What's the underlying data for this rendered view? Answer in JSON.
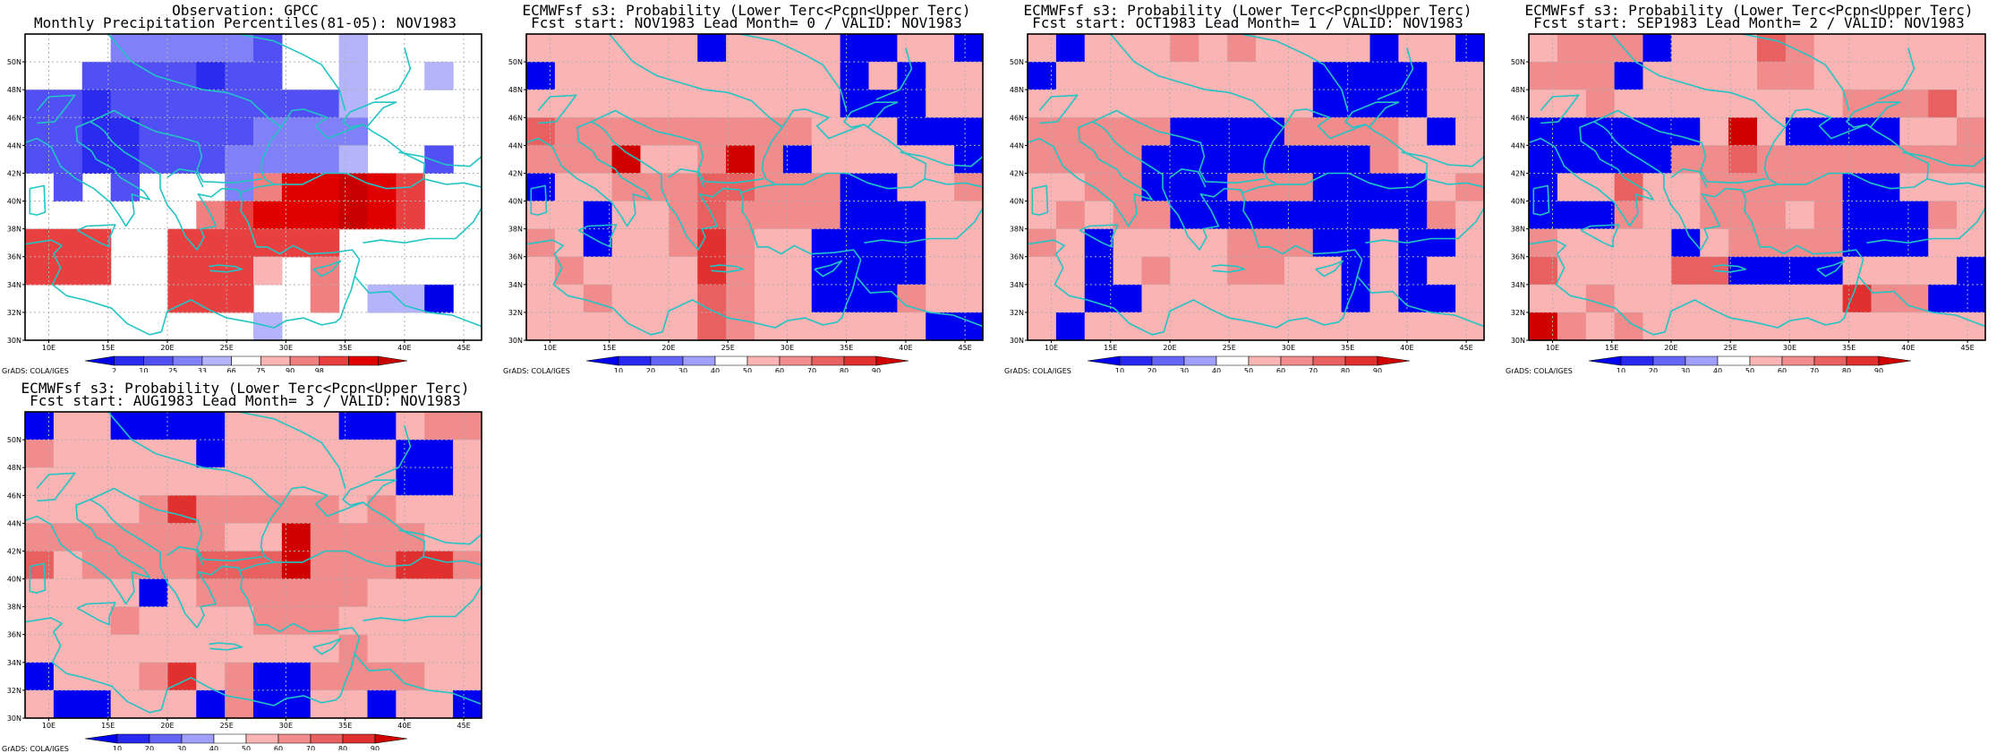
{
  "panels": [
    {
      "id": "obs",
      "title_line1": "Observation: GPCC",
      "title_line2": "Monthly Precipitation Percentiles(81-05): NOV1983",
      "credit": "GrADS: COLA/IGES",
      "colorbar": {
        "labels": [
          "2",
          "10",
          "25",
          "33",
          "66",
          "75",
          "90",
          "98"
        ],
        "colors": [
          "#0000e6",
          "#2b2bf0",
          "#5050f5",
          "#8080f8",
          "#b4b4fa",
          "#ffffff",
          "#fab4b4",
          "#f08080",
          "#e84040",
          "#e00000",
          "#c80000"
        ]
      }
    },
    {
      "id": "lead0",
      "title_line1": "ECMWFsf s3: Probability (Lower Terc<Pcpn<Upper Terc)",
      "title_line2": "Fcst start: NOV1983  Lead Month= 0 / VALID: NOV1983",
      "credit": "GrADS: COLA/IGES",
      "colorbar": {
        "labels": [
          "10",
          "20",
          "30",
          "40",
          "50",
          "60",
          "70",
          "80",
          "90"
        ],
        "colors": [
          "#0000f0",
          "#2828f0",
          "#6464f5",
          "#a0a0fa",
          "#ffffff",
          "#fab4b4",
          "#f08c8c",
          "#e86060",
          "#e03030",
          "#d00000"
        ]
      }
    },
    {
      "id": "lead1",
      "title_line1": "ECMWFsf s3: Probability (Lower Terc<Pcpn<Upper Terc)",
      "title_line2": "Fcst start: OCT1983  Lead Month= 1 / VALID: NOV1983",
      "credit": "GrADS: COLA/IGES",
      "colorbar": {
        "labels": [
          "10",
          "20",
          "30",
          "40",
          "50",
          "60",
          "70",
          "80",
          "90"
        ],
        "colors": [
          "#0000f0",
          "#2828f0",
          "#6464f5",
          "#a0a0fa",
          "#ffffff",
          "#fab4b4",
          "#f08c8c",
          "#e86060",
          "#e03030",
          "#d00000"
        ]
      }
    },
    {
      "id": "lead2",
      "title_line1": "ECMWFsf s3: Probability (Lower Terc<Pcpn<Upper Terc)",
      "title_line2": "Fcst start: SEP1983  Lead Month= 2 / VALID: NOV1983",
      "credit": "GrADS: COLA/IGES",
      "colorbar": {
        "labels": [
          "10",
          "20",
          "30",
          "40",
          "50",
          "60",
          "70",
          "80",
          "90"
        ],
        "colors": [
          "#0000f0",
          "#2828f0",
          "#6464f5",
          "#a0a0fa",
          "#ffffff",
          "#fab4b4",
          "#f08c8c",
          "#e86060",
          "#e03030",
          "#d00000"
        ]
      }
    },
    {
      "id": "lead3",
      "title_line1": "ECMWFsf s3: Probability (Lower Terc<Pcpn<Upper Terc)",
      "title_line2": "Fcst start: AUG1983  Lead Month= 3 / VALID: NOV1983",
      "credit": "GrADS: COLA/IGES",
      "colorbar": {
        "labels": [
          "10",
          "20",
          "30",
          "40",
          "50",
          "60",
          "70",
          "80",
          "90"
        ],
        "colors": [
          "#0000f0",
          "#2828f0",
          "#6464f5",
          "#a0a0fa",
          "#ffffff",
          "#fab4b4",
          "#f08c8c",
          "#e86060",
          "#e03030",
          "#d00000"
        ]
      }
    }
  ],
  "map_axes": {
    "lon_labels": [
      "10E",
      "15E",
      "20E",
      "25E",
      "30E",
      "35E",
      "40E",
      "45E"
    ],
    "lat_labels": [
      "30N",
      "32N",
      "34N",
      "36N",
      "38N",
      "40N",
      "42N",
      "44N",
      "46N",
      "48N",
      "50N"
    ],
    "lon_range": [
      8,
      46.5
    ],
    "lat_range": [
      30,
      52
    ],
    "grid": true
  },
  "chart_data": [
    {
      "type": "heatmap",
      "panel": "obs",
      "title": "Monthly Precipitation Percentiles(81-05): NOV1983",
      "x": [
        "8E",
        "10.5E",
        "13E",
        "15.5E",
        "18E",
        "20.5E",
        "23E",
        "25.5E",
        "28E",
        "30.5E",
        "33E",
        "35.5E",
        "38E",
        "40.5E",
        "43E",
        "45.5E"
      ],
      "y": [
        "51N",
        "49N",
        "47N",
        "45N",
        "43N",
        "41N",
        "39N",
        "37N",
        "35N",
        "33N",
        "31N"
      ],
      "grid_classes": [
        [
          5,
          5,
          5,
          3,
          3,
          3,
          3,
          3,
          2,
          5,
          5,
          4,
          5,
          5,
          5,
          5
        ],
        [
          5,
          5,
          2,
          2,
          2,
          2,
          1,
          2,
          2,
          5,
          5,
          4,
          5,
          5,
          4,
          5
        ],
        [
          2,
          2,
          1,
          2,
          2,
          2,
          2,
          2,
          2,
          2,
          2,
          4,
          5,
          5,
          5,
          5
        ],
        [
          2,
          2,
          1,
          1,
          2,
          2,
          2,
          2,
          3,
          3,
          3,
          3,
          5,
          5,
          5,
          5
        ],
        [
          2,
          2,
          1,
          1,
          2,
          2,
          2,
          3,
          3,
          3,
          3,
          4,
          5,
          5,
          2,
          5
        ],
        [
          5,
          2,
          5,
          2,
          5,
          5,
          5,
          3,
          7,
          9,
          9,
          10,
          9,
          8,
          5,
          5
        ],
        [
          5,
          5,
          5,
          5,
          5,
          5,
          7,
          8,
          9,
          9,
          9,
          10,
          9,
          8,
          5,
          5
        ],
        [
          8,
          8,
          8,
          5,
          5,
          8,
          8,
          8,
          8,
          8,
          8,
          5,
          5,
          5,
          5,
          5
        ],
        [
          8,
          8,
          8,
          5,
          5,
          8,
          8,
          8,
          6,
          5,
          7,
          5,
          5,
          5,
          5,
          5
        ],
        [
          5,
          5,
          5,
          5,
          5,
          8,
          8,
          8,
          5,
          5,
          7,
          5,
          4,
          4,
          0,
          5
        ],
        [
          5,
          5,
          5,
          5,
          5,
          5,
          5,
          5,
          4,
          5,
          5,
          5,
          5,
          5,
          5,
          5
        ]
      ]
    },
    {
      "type": "heatmap",
      "panel": "lead0",
      "title": "Probability (Lower Terc<Pcpn<Upper Terc) Lead Month= 0",
      "grid_classes": [
        [
          5,
          5,
          5,
          5,
          5,
          5,
          0,
          5,
          5,
          5,
          5,
          0,
          0,
          5,
          5,
          0
        ],
        [
          0,
          5,
          5,
          5,
          5,
          5,
          5,
          5,
          5,
          5,
          5,
          0,
          5,
          0,
          5,
          5
        ],
        [
          5,
          5,
          5,
          5,
          5,
          5,
          5,
          5,
          5,
          5,
          5,
          0,
          0,
          0,
          5,
          5
        ],
        [
          7,
          6,
          6,
          6,
          6,
          6,
          6,
          6,
          6,
          6,
          5,
          5,
          5,
          0,
          0,
          0
        ],
        [
          6,
          6,
          6,
          9,
          5,
          5,
          6,
          9,
          6,
          0,
          5,
          5,
          5,
          5,
          5,
          0
        ],
        [
          0,
          5,
          5,
          6,
          6,
          6,
          7,
          7,
          6,
          6,
          6,
          0,
          0,
          5,
          5,
          6
        ],
        [
          5,
          5,
          0,
          5,
          5,
          6,
          7,
          6,
          6,
          6,
          6,
          0,
          0,
          0,
          5,
          5
        ],
        [
          6,
          5,
          0,
          5,
          5,
          6,
          8,
          6,
          5,
          5,
          0,
          0,
          0,
          0,
          5,
          5
        ],
        [
          5,
          6,
          5,
          5,
          5,
          5,
          8,
          6,
          5,
          5,
          0,
          0,
          0,
          0,
          5,
          5
        ],
        [
          5,
          5,
          6,
          5,
          5,
          5,
          7,
          6,
          5,
          5,
          0,
          0,
          0,
          6,
          5,
          5
        ],
        [
          5,
          5,
          5,
          5,
          5,
          5,
          7,
          6,
          5,
          5,
          5,
          5,
          5,
          5,
          0,
          0
        ]
      ]
    },
    {
      "type": "heatmap",
      "panel": "lead1",
      "title": "Probability (Lower Terc<Pcpn<Upper Terc) Lead Month= 1",
      "grid_classes": [
        [
          5,
          0,
          5,
          5,
          5,
          6,
          5,
          6,
          5,
          5,
          5,
          5,
          0,
          5,
          5,
          0
        ],
        [
          0,
          5,
          5,
          5,
          5,
          5,
          5,
          5,
          5,
          5,
          0,
          0,
          0,
          0,
          5,
          5
        ],
        [
          5,
          5,
          5,
          5,
          5,
          5,
          5,
          5,
          5,
          5,
          0,
          0,
          0,
          0,
          5,
          5
        ],
        [
          6,
          6,
          6,
          6,
          6,
          0,
          0,
          0,
          0,
          6,
          6,
          6,
          6,
          5,
          0,
          5
        ],
        [
          6,
          6,
          6,
          6,
          0,
          0,
          0,
          0,
          0,
          0,
          0,
          0,
          6,
          5,
          5,
          5
        ],
        [
          5,
          5,
          6,
          6,
          0,
          0,
          0,
          6,
          6,
          6,
          0,
          0,
          0,
          0,
          5,
          6
        ],
        [
          5,
          6,
          5,
          6,
          6,
          0,
          0,
          0,
          0,
          0,
          0,
          0,
          0,
          0,
          6,
          5
        ],
        [
          6,
          5,
          0,
          5,
          5,
          5,
          5,
          6,
          6,
          6,
          0,
          0,
          5,
          0,
          0,
          5
        ],
        [
          5,
          5,
          0,
          5,
          6,
          5,
          5,
          6,
          6,
          5,
          5,
          0,
          5,
          0,
          5,
          5
        ],
        [
          5,
          5,
          0,
          0,
          5,
          5,
          5,
          5,
          5,
          5,
          5,
          0,
          5,
          0,
          0,
          5
        ],
        [
          5,
          0,
          5,
          5,
          5,
          5,
          5,
          5,
          5,
          5,
          5,
          5,
          5,
          5,
          5,
          5
        ]
      ]
    },
    {
      "type": "heatmap",
      "panel": "lead2",
      "title": "Probability (Lower Terc<Pcpn<Upper Terc) Lead Month= 2",
      "grid_classes": [
        [
          5,
          6,
          6,
          6,
          0,
          5,
          5,
          5,
          7,
          6,
          5,
          5,
          5,
          5,
          5,
          5
        ],
        [
          6,
          6,
          6,
          0,
          5,
          5,
          5,
          5,
          6,
          6,
          5,
          5,
          5,
          5,
          5,
          5
        ],
        [
          5,
          5,
          6,
          5,
          5,
          5,
          5,
          5,
          5,
          5,
          5,
          6,
          6,
          6,
          7,
          5
        ],
        [
          0,
          0,
          0,
          0,
          0,
          0,
          5,
          9,
          5,
          0,
          0,
          0,
          0,
          5,
          5,
          6
        ],
        [
          0,
          0,
          0,
          0,
          0,
          6,
          6,
          7,
          6,
          6,
          6,
          6,
          6,
          6,
          6,
          6
        ],
        [
          0,
          5,
          5,
          7,
          5,
          5,
          6,
          6,
          6,
          6,
          6,
          0,
          0,
          5,
          5,
          5
        ],
        [
          0,
          0,
          0,
          6,
          5,
          5,
          6,
          6,
          6,
          5,
          6,
          0,
          0,
          0,
          6,
          5
        ],
        [
          6,
          5,
          5,
          5,
          5,
          0,
          5,
          6,
          6,
          6,
          6,
          0,
          0,
          0,
          5,
          5
        ],
        [
          7,
          5,
          5,
          5,
          5,
          7,
          7,
          0,
          0,
          0,
          0,
          5,
          5,
          5,
          5,
          0
        ],
        [
          5,
          5,
          6,
          5,
          5,
          5,
          5,
          5,
          5,
          5,
          5,
          8,
          6,
          6,
          0,
          0
        ],
        [
          9,
          6,
          5,
          6,
          5,
          5,
          5,
          5,
          5,
          5,
          5,
          5,
          5,
          5,
          5,
          5
        ]
      ]
    },
    {
      "type": "heatmap",
      "panel": "lead3",
      "title": "Probability (Lower Terc<Pcpn<Upper Terc) Lead Month= 3",
      "grid_classes": [
        [
          0,
          5,
          5,
          0,
          0,
          0,
          0,
          5,
          5,
          5,
          5,
          0,
          0,
          5,
          6,
          6
        ],
        [
          6,
          5,
          5,
          5,
          5,
          5,
          0,
          5,
          5,
          5,
          5,
          5,
          5,
          0,
          0,
          5
        ],
        [
          5,
          5,
          5,
          5,
          5,
          5,
          5,
          5,
          5,
          5,
          5,
          5,
          5,
          0,
          0,
          5
        ],
        [
          5,
          5,
          5,
          5,
          6,
          8,
          6,
          6,
          6,
          6,
          6,
          5,
          6,
          5,
          5,
          5
        ],
        [
          6,
          6,
          6,
          6,
          6,
          6,
          6,
          5,
          5,
          9,
          6,
          6,
          6,
          6,
          5,
          5
        ],
        [
          7,
          5,
          6,
          6,
          6,
          6,
          7,
          7,
          7,
          9,
          6,
          6,
          6,
          8,
          8,
          6
        ],
        [
          5,
          5,
          5,
          5,
          0,
          5,
          6,
          6,
          6,
          6,
          6,
          6,
          5,
          5,
          5,
          5
        ],
        [
          5,
          5,
          5,
          6,
          5,
          5,
          5,
          5,
          6,
          6,
          6,
          5,
          5,
          5,
          5,
          5
        ],
        [
          5,
          5,
          5,
          5,
          5,
          5,
          5,
          5,
          5,
          5,
          5,
          6,
          5,
          5,
          5,
          5
        ],
        [
          0,
          5,
          5,
          5,
          6,
          8,
          5,
          6,
          0,
          0,
          6,
          6,
          6,
          6,
          5,
          5
        ],
        [
          5,
          0,
          0,
          5,
          5,
          5,
          0,
          6,
          0,
          0,
          5,
          5,
          0,
          5,
          5,
          0
        ]
      ]
    }
  ]
}
